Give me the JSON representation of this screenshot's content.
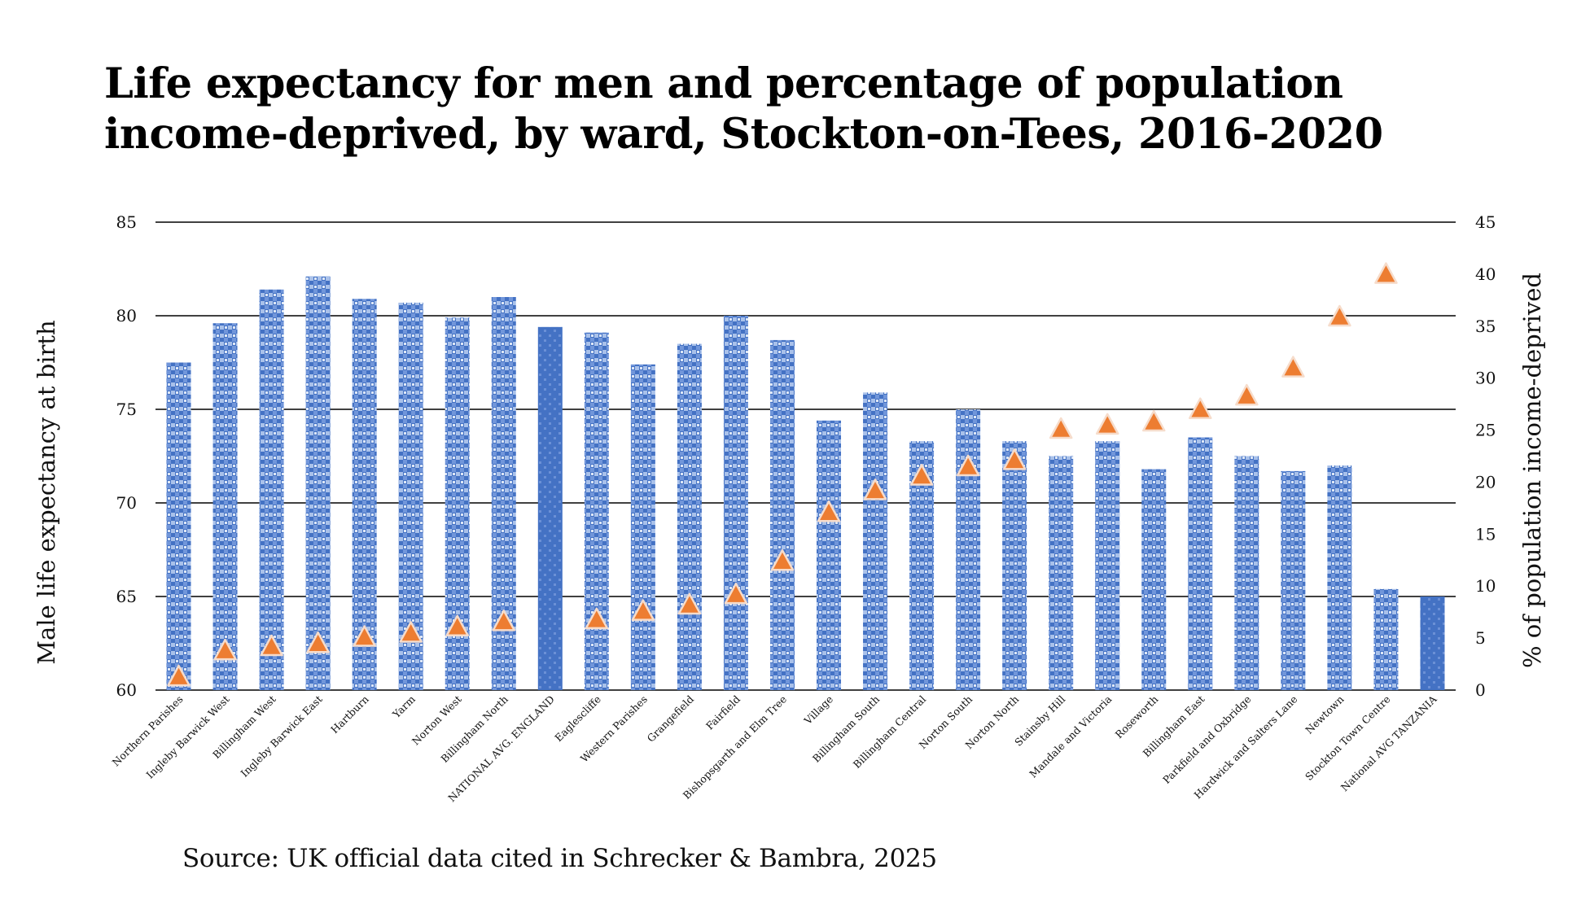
{
  "chart_data": {
    "type": "bar",
    "title_lines": [
      "Life expectancy for men and percentage of population",
      "income-deprived, by ward, Stockton-on-Tees, 2016-2020"
    ],
    "source": "Source: UK official data cited in Schrecker & Bambra, 2025",
    "ylabel": "Male life expectancy at birth",
    "y2label": "% of population income-deprived",
    "ylim": [
      60,
      85
    ],
    "yticks": [
      60,
      65,
      70,
      75,
      80,
      85
    ],
    "y2lim": [
      0,
      45
    ],
    "y2ticks": [
      0,
      5,
      10,
      15,
      20,
      25,
      30,
      35,
      40,
      45
    ],
    "grid": true,
    "legend": "none",
    "categories": [
      "Northern Parishes",
      "Ingleby Barwick West",
      "Billingham West",
      "Ingleby Barwick East",
      "Hartburn",
      "Yarm",
      "Norton West",
      "Billingham North",
      "NATIONAL AVG. ENGLAND",
      "Eaglescliffe",
      "Western Parishes",
      "Grangefield",
      "Fairfield",
      "Bishopsgarth and Elm Tree",
      "Village",
      "Billingham South",
      "Billingham Central",
      "Norton South",
      "Norton North",
      "Stainsby Hill",
      "Mandale and Victoria",
      "Roseworth",
      "Billingham East",
      "Parkfield and Oxbridge",
      "Hardwick and Salters Lane",
      "Newtown",
      "Stockton Town Centre",
      "National AVG TANZANIA"
    ],
    "series": [
      {
        "name": "Male life expectancy at birth",
        "type": "bar",
        "axis": "left",
        "values": [
          77.5,
          79.6,
          81.4,
          82.1,
          80.9,
          80.7,
          79.9,
          81.0,
          79.4,
          79.1,
          77.4,
          78.5,
          80.0,
          78.7,
          74.4,
          75.9,
          73.3,
          75.0,
          73.3,
          72.5,
          73.3,
          71.8,
          73.5,
          72.5,
          71.7,
          72.0,
          65.4,
          65.0
        ],
        "highlight": [
          false,
          false,
          false,
          false,
          false,
          false,
          false,
          false,
          true,
          false,
          false,
          false,
          false,
          false,
          false,
          false,
          false,
          false,
          false,
          false,
          false,
          false,
          false,
          false,
          false,
          false,
          false,
          true
        ]
      },
      {
        "name": "% of population income-deprived",
        "type": "scatter",
        "marker": "triangle",
        "axis": "right",
        "values": [
          1.4,
          3.9,
          4.3,
          4.6,
          5.2,
          5.6,
          6.2,
          6.7,
          null,
          6.9,
          7.7,
          8.3,
          9.3,
          12.5,
          17.2,
          19.3,
          20.7,
          21.6,
          22.2,
          25.2,
          25.6,
          25.9,
          27.1,
          28.4,
          31.1,
          36.0,
          40.1,
          null
        ]
      }
    ],
    "colors": {
      "bar": "#4472C4",
      "bar_light": "#A9C1EA",
      "bar_mid": "#7196DA",
      "marker": "#ED7D31",
      "marker_outline": "#F6DCCB",
      "grid": "#404040"
    }
  }
}
